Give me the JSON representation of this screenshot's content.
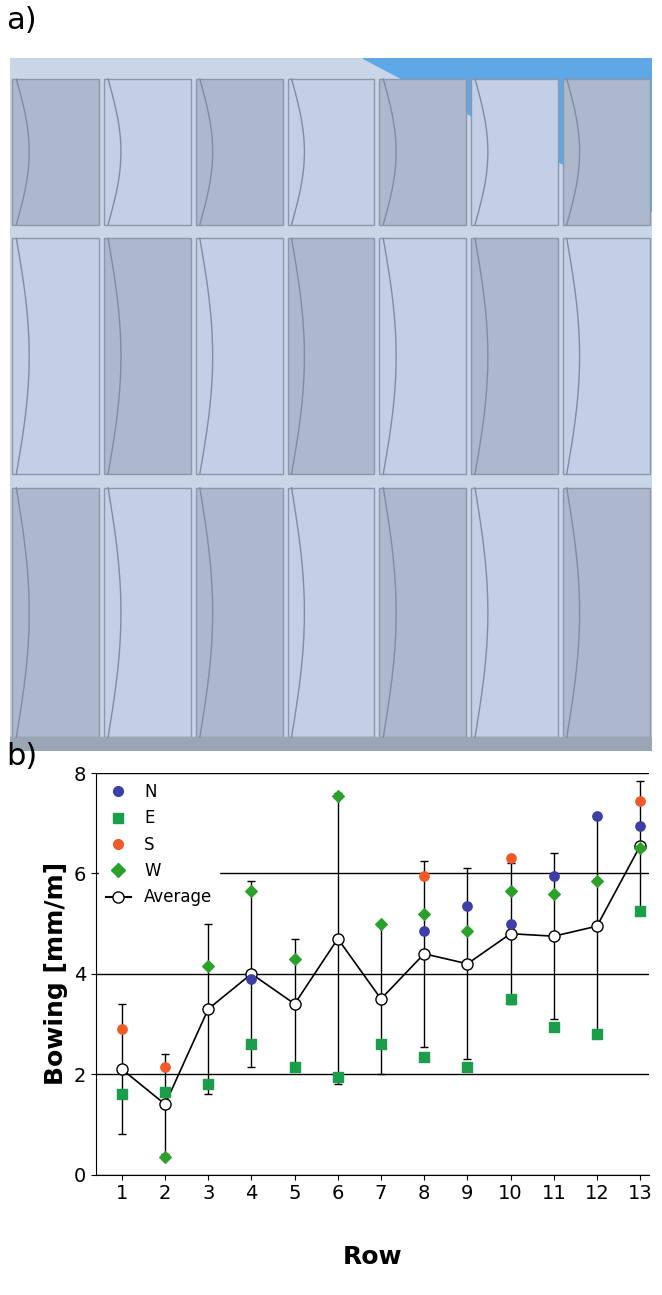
{
  "panel_labels": [
    "a)",
    "b)"
  ],
  "chart_data": {
    "type": "scatter",
    "x_label": "Row",
    "y_label": "Bowing [mm/m]",
    "x": [
      1,
      2,
      3,
      4,
      5,
      6,
      7,
      8,
      9,
      10,
      11,
      12,
      13
    ],
    "series": [
      {
        "name": "N",
        "color": "#3b3fa6",
        "marker": "circle",
        "values": [
          null,
          null,
          null,
          3.9,
          null,
          null,
          null,
          4.85,
          5.35,
          5.0,
          5.95,
          7.15,
          6.95
        ]
      },
      {
        "name": "E",
        "color": "#1b9e4b",
        "marker": "square",
        "values": [
          1.6,
          1.65,
          1.8,
          2.6,
          2.15,
          1.95,
          2.6,
          2.35,
          2.15,
          3.5,
          2.95,
          2.8,
          5.25
        ]
      },
      {
        "name": "S",
        "color": "#f05a28",
        "marker": "circle",
        "values": [
          2.9,
          2.15,
          null,
          null,
          null,
          null,
          null,
          5.95,
          null,
          6.3,
          null,
          null,
          7.45
        ]
      },
      {
        "name": "W",
        "color": "#2ca02c",
        "marker": "diamond",
        "values": [
          null,
          0.35,
          4.15,
          5.65,
          4.3,
          7.55,
          5.0,
          5.2,
          4.85,
          5.65,
          5.6,
          5.85,
          6.5
        ]
      },
      {
        "name": "Average",
        "color": "#000000",
        "marker": "circle",
        "type": "line",
        "values": [
          2.1,
          1.4,
          3.3,
          4.0,
          3.4,
          4.7,
          3.5,
          4.4,
          4.2,
          4.8,
          4.75,
          4.95,
          6.55
        ],
        "errors": [
          1.3,
          1.0,
          1.7,
          1.85,
          1.3,
          2.9,
          1.5,
          1.85,
          1.9,
          1.4,
          1.65,
          2.2,
          1.3
        ]
      }
    ],
    "xlim": [
      0.4,
      13.2
    ],
    "ylim": [
      0,
      8
    ],
    "xticks": [
      1,
      2,
      3,
      4,
      5,
      6,
      7,
      8,
      9,
      10,
      11,
      12,
      13
    ],
    "yticks": [
      0,
      2,
      4,
      6,
      8
    ],
    "grid": true,
    "legend": "upper left"
  }
}
